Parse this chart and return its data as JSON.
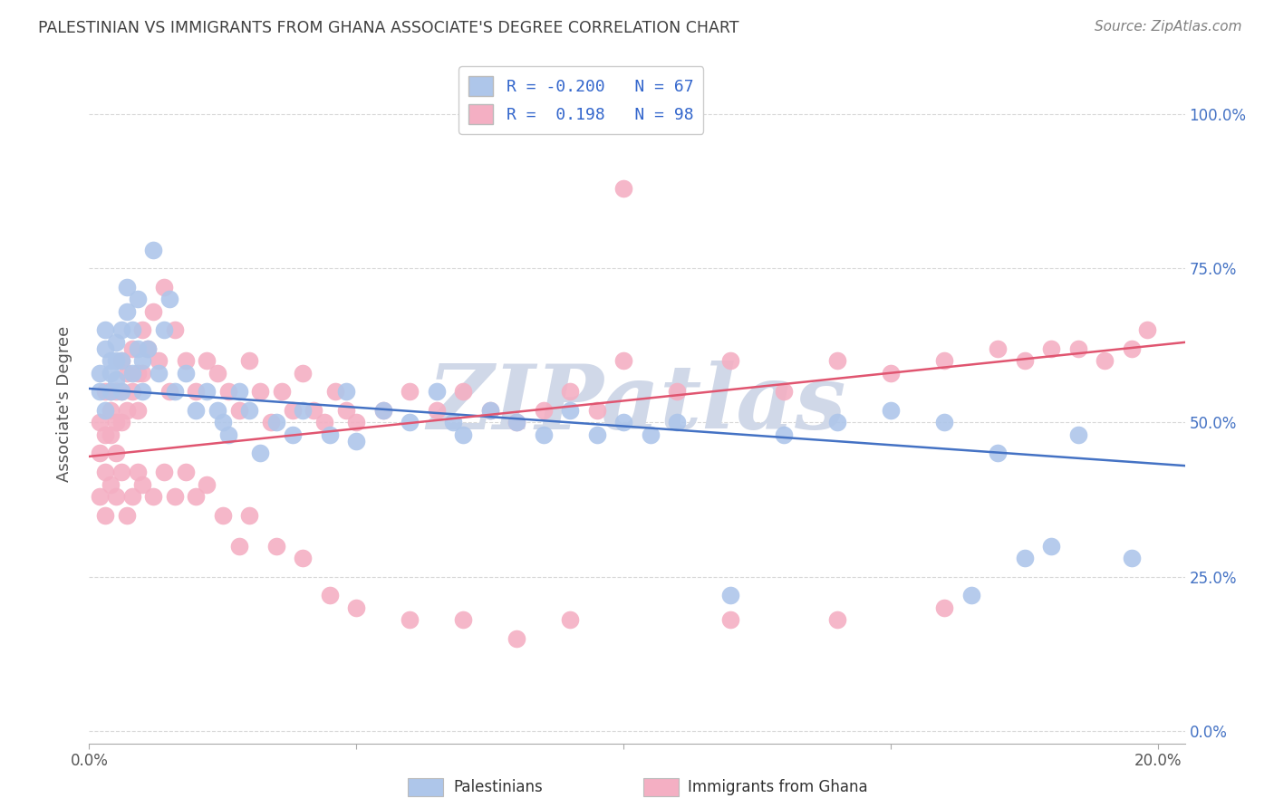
{
  "title": "PALESTINIAN VS IMMIGRANTS FROM GHANA ASSOCIATE'S DEGREE CORRELATION CHART",
  "source": "Source: ZipAtlas.com",
  "ylabel": "Associate's Degree",
  "blue_color": "#aec6ea",
  "pink_color": "#f4afc3",
  "blue_line_color": "#4472c4",
  "pink_line_color": "#e05570",
  "title_color": "#404040",
  "source_color": "#808080",
  "watermark": "ZIPatlas",
  "watermark_color": "#d0d8e8",
  "xlim": [
    0.0,
    0.205
  ],
  "ylim": [
    -0.02,
    1.08
  ],
  "blue_line_x0": 0.0,
  "blue_line_x1": 0.205,
  "blue_line_y0": 0.555,
  "blue_line_y1": 0.43,
  "pink_line_x0": 0.0,
  "pink_line_x1": 0.205,
  "pink_line_y0": 0.445,
  "pink_line_y1": 0.63,
  "grid_color": "#d8d8d8",
  "ytick_vals": [
    0.0,
    0.25,
    0.5,
    0.75,
    1.0
  ],
  "ytick_labels": [
    "0.0%",
    "25.0%",
    "50.0%",
    "75.0%",
    "100.0%"
  ],
  "xtick_vals": [
    0.0,
    0.05,
    0.1,
    0.15,
    0.2
  ],
  "blue_scatter_x": [
    0.002,
    0.002,
    0.003,
    0.003,
    0.003,
    0.004,
    0.004,
    0.004,
    0.005,
    0.005,
    0.005,
    0.006,
    0.006,
    0.006,
    0.007,
    0.007,
    0.008,
    0.008,
    0.009,
    0.009,
    0.01,
    0.01,
    0.011,
    0.012,
    0.013,
    0.014,
    0.015,
    0.016,
    0.018,
    0.02,
    0.022,
    0.024,
    0.025,
    0.026,
    0.028,
    0.03,
    0.032,
    0.035,
    0.038,
    0.04,
    0.045,
    0.048,
    0.05,
    0.055,
    0.06,
    0.065,
    0.068,
    0.07,
    0.075,
    0.08,
    0.085,
    0.09,
    0.095,
    0.1,
    0.105,
    0.11,
    0.12,
    0.13,
    0.14,
    0.15,
    0.16,
    0.165,
    0.17,
    0.175,
    0.18,
    0.185,
    0.195
  ],
  "blue_scatter_y": [
    0.55,
    0.58,
    0.62,
    0.65,
    0.52,
    0.6,
    0.58,
    0.55,
    0.63,
    0.6,
    0.57,
    0.65,
    0.6,
    0.55,
    0.72,
    0.68,
    0.65,
    0.58,
    0.7,
    0.62,
    0.6,
    0.55,
    0.62,
    0.78,
    0.58,
    0.65,
    0.7,
    0.55,
    0.58,
    0.52,
    0.55,
    0.52,
    0.5,
    0.48,
    0.55,
    0.52,
    0.45,
    0.5,
    0.48,
    0.52,
    0.48,
    0.55,
    0.47,
    0.52,
    0.5,
    0.55,
    0.5,
    0.48,
    0.52,
    0.5,
    0.48,
    0.52,
    0.48,
    0.5,
    0.48,
    0.5,
    0.22,
    0.48,
    0.5,
    0.52,
    0.5,
    0.22,
    0.45,
    0.28,
    0.3,
    0.48,
    0.28
  ],
  "pink_scatter_x": [
    0.002,
    0.002,
    0.003,
    0.003,
    0.003,
    0.004,
    0.004,
    0.004,
    0.005,
    0.005,
    0.005,
    0.006,
    0.006,
    0.006,
    0.007,
    0.007,
    0.008,
    0.008,
    0.009,
    0.009,
    0.01,
    0.01,
    0.011,
    0.012,
    0.013,
    0.014,
    0.015,
    0.016,
    0.018,
    0.02,
    0.022,
    0.024,
    0.026,
    0.028,
    0.03,
    0.032,
    0.034,
    0.036,
    0.038,
    0.04,
    0.042,
    0.044,
    0.046,
    0.048,
    0.05,
    0.055,
    0.06,
    0.065,
    0.07,
    0.075,
    0.08,
    0.085,
    0.09,
    0.095,
    0.1,
    0.11,
    0.12,
    0.13,
    0.14,
    0.15,
    0.16,
    0.17,
    0.175,
    0.18,
    0.185,
    0.19,
    0.195,
    0.198,
    0.002,
    0.003,
    0.004,
    0.005,
    0.006,
    0.007,
    0.008,
    0.009,
    0.01,
    0.012,
    0.014,
    0.016,
    0.018,
    0.02,
    0.022,
    0.025,
    0.028,
    0.03,
    0.035,
    0.04,
    0.045,
    0.05,
    0.06,
    0.07,
    0.08,
    0.09,
    0.1,
    0.12,
    0.14,
    0.16
  ],
  "pink_scatter_y": [
    0.5,
    0.45,
    0.55,
    0.48,
    0.42,
    0.55,
    0.52,
    0.48,
    0.55,
    0.5,
    0.45,
    0.6,
    0.55,
    0.5,
    0.58,
    0.52,
    0.62,
    0.55,
    0.58,
    0.52,
    0.65,
    0.58,
    0.62,
    0.68,
    0.6,
    0.72,
    0.55,
    0.65,
    0.6,
    0.55,
    0.6,
    0.58,
    0.55,
    0.52,
    0.6,
    0.55,
    0.5,
    0.55,
    0.52,
    0.58,
    0.52,
    0.5,
    0.55,
    0.52,
    0.5,
    0.52,
    0.55,
    0.52,
    0.55,
    0.52,
    0.5,
    0.52,
    0.55,
    0.52,
    0.6,
    0.55,
    0.6,
    0.55,
    0.6,
    0.58,
    0.6,
    0.62,
    0.6,
    0.62,
    0.62,
    0.6,
    0.62,
    0.65,
    0.38,
    0.35,
    0.4,
    0.38,
    0.42,
    0.35,
    0.38,
    0.42,
    0.4,
    0.38,
    0.42,
    0.38,
    0.42,
    0.38,
    0.4,
    0.35,
    0.3,
    0.35,
    0.3,
    0.28,
    0.22,
    0.2,
    0.18,
    0.18,
    0.15,
    0.18,
    0.88,
    0.18,
    0.18,
    0.2
  ],
  "legend_line1": "R = -0.200   N = 67",
  "legend_line2": "R =  0.198   N = 98",
  "bottom_label_palestinians": "Palestinians",
  "bottom_label_ghana": "Immigrants from Ghana"
}
